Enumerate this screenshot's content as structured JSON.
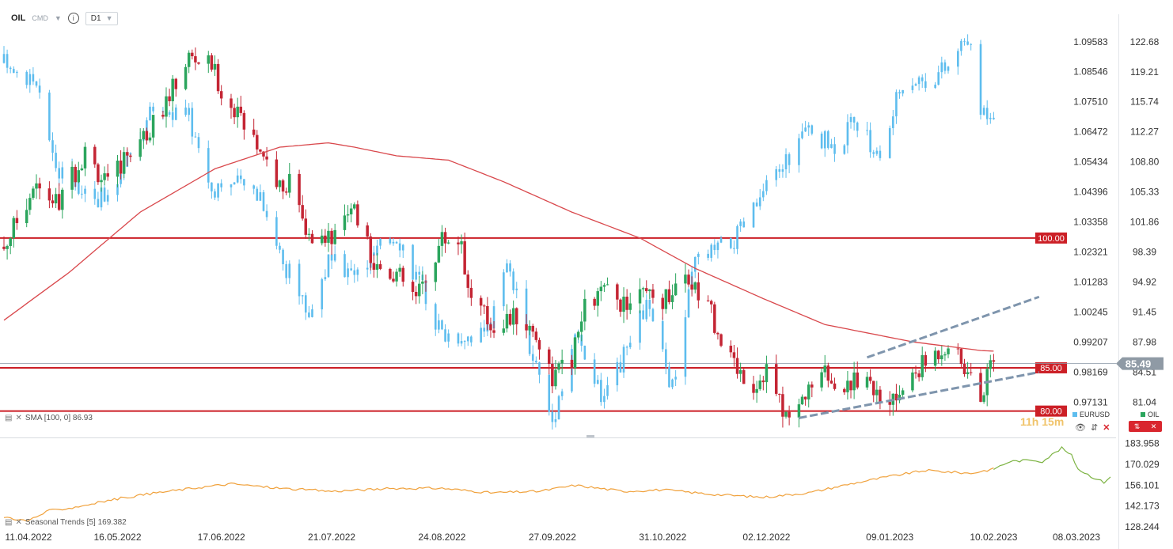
{
  "header": {
    "symbol": "OIL",
    "exchange": "CMD",
    "timeframe": "D1",
    "icons": [
      "chevron-down-icon",
      "info-icon"
    ]
  },
  "colors": {
    "up": "#2ba55d",
    "down": "#c42534",
    "overlay": "#5ebdee",
    "sma": "#d9484c",
    "hline": "#cc1f26",
    "channel": "#7f95ad",
    "seasonal_hist": "#f0a13b",
    "seasonal_proj": "#7cb342"
  },
  "indicators": {
    "sma_label": "SMA [100, 0] 86.93",
    "seasonal_label": "Seasonal Trends [5] 169.382"
  },
  "countdown": "11h 15m",
  "legend": {
    "eurusd": "EURUSD",
    "oil": "OIL"
  },
  "chart_data": {
    "type": "candlestick",
    "symbol": "OIL",
    "timeframe": "D1",
    "overlay_symbol": "EURUSD",
    "x_tick_labels": [
      "11.04.2022",
      "16.05.2022",
      "17.06.2022",
      "21.07.2022",
      "24.08.2022",
      "27.09.2022",
      "31.10.2022",
      "02.12.2022",
      "09.01.2023",
      "10.02.2023",
      "08.03.2023"
    ],
    "x_range": [
      "2022-04-11",
      "2023-03-08"
    ],
    "y_right_ticks": [
      "122.68",
      "119.21",
      "115.74",
      "112.27",
      "108.80",
      "105.33",
      "101.86",
      "98.39",
      "94.92",
      "91.45",
      "87.98",
      "84.51",
      "81.04"
    ],
    "y_range": [
      77.5,
      124.4
    ],
    "y_eurusd_ticks": [
      "1.09583",
      "1.08546",
      "1.07510",
      "1.06472",
      "1.05434",
      "1.04396",
      "1.03358",
      "1.02321",
      "1.01283",
      "1.00245",
      "0.99207",
      "0.98169",
      "0.97131"
    ],
    "last_price": "85.49",
    "horizontal_levels": [
      {
        "label": "100.00",
        "value": 100.0
      },
      {
        "label": "85.00",
        "value": 85.0
      },
      {
        "label": "80.00",
        "value": 80.0
      }
    ],
    "sma": {
      "period": 100,
      "offset": 0,
      "value": 86.93
    },
    "price_anchors": [
      [
        "2022-04-11",
        99
      ],
      [
        "2022-04-20",
        106
      ],
      [
        "2022-04-28",
        104
      ],
      [
        "2022-05-06",
        110
      ],
      [
        "2022-05-13",
        106
      ],
      [
        "2022-05-19",
        110
      ],
      [
        "2022-05-27",
        113
      ],
      [
        "2022-06-07",
        121
      ],
      [
        "2022-06-14",
        120
      ],
      [
        "2022-06-17",
        117
      ],
      [
        "2022-06-22",
        114
      ],
      [
        "2022-06-30",
        110
      ],
      [
        "2022-07-06",
        105
      ],
      [
        "2022-07-08",
        108
      ],
      [
        "2022-07-13",
        100
      ],
      [
        "2022-07-19",
        99
      ],
      [
        "2022-07-27",
        104
      ],
      [
        "2022-08-03",
        97
      ],
      [
        "2022-08-10",
        96
      ],
      [
        "2022-08-16",
        93
      ],
      [
        "2022-08-24",
        100
      ],
      [
        "2022-08-30",
        100
      ],
      [
        "2022-09-01",
        94
      ],
      [
        "2022-09-08",
        90
      ],
      [
        "2022-09-16",
        91
      ],
      [
        "2022-09-22",
        89
      ],
      [
        "2022-09-27",
        84
      ],
      [
        "2022-10-03",
        86
      ],
      [
        "2022-10-07",
        92
      ],
      [
        "2022-10-13",
        94
      ],
      [
        "2022-10-19",
        92
      ],
      [
        "2022-10-25",
        93
      ],
      [
        "2022-10-31",
        93
      ],
      [
        "2022-11-07",
        96
      ],
      [
        "2022-11-14",
        92
      ],
      [
        "2022-11-21",
        86
      ],
      [
        "2022-11-28",
        83
      ],
      [
        "2022-12-02",
        85
      ],
      [
        "2022-12-06",
        81
      ],
      [
        "2022-12-09",
        79
      ],
      [
        "2022-12-14",
        82
      ],
      [
        "2022-12-20",
        84
      ],
      [
        "2022-12-27",
        83
      ],
      [
        "2023-01-02",
        85
      ],
      [
        "2023-01-06",
        80
      ],
      [
        "2023-01-12",
        82
      ],
      [
        "2023-01-18",
        85
      ],
      [
        "2023-01-24",
        87
      ],
      [
        "2023-01-27",
        88
      ],
      [
        "2023-02-01",
        85
      ],
      [
        "2023-02-06",
        82
      ],
      [
        "2023-02-10",
        85.49
      ]
    ],
    "sma_anchors": [
      [
        "2022-04-11",
        90.5
      ],
      [
        "2022-05-01",
        96
      ],
      [
        "2022-05-23",
        103
      ],
      [
        "2022-06-15",
        108
      ],
      [
        "2022-07-05",
        110.5
      ],
      [
        "2022-07-20",
        111
      ],
      [
        "2022-07-28",
        110.5
      ],
      [
        "2022-08-10",
        109.5
      ],
      [
        "2022-08-26",
        109
      ],
      [
        "2022-09-12",
        106.5
      ],
      [
        "2022-10-03",
        103
      ],
      [
        "2022-10-24",
        100
      ],
      [
        "2022-11-10",
        96.5
      ],
      [
        "2022-12-01",
        93
      ],
      [
        "2022-12-20",
        90
      ],
      [
        "2023-01-16",
        88
      ],
      [
        "2023-02-06",
        87
      ],
      [
        "2023-02-10",
        86.93
      ]
    ],
    "eurusd_anchors": [
      [
        "2022-04-11",
        1.0885
      ],
      [
        "2022-04-20",
        1.083
      ],
      [
        "2022-04-28",
        1.052
      ],
      [
        "2022-05-13",
        1.04
      ],
      [
        "2022-05-27",
        1.073
      ],
      [
        "2022-06-07",
        1.07
      ],
      [
        "2022-06-14",
        1.045
      ],
      [
        "2022-06-17",
        1.048
      ],
      [
        "2022-06-29",
        1.044
      ],
      [
        "2022-07-06",
        1.02
      ],
      [
        "2022-07-14",
        1.002
      ],
      [
        "2022-07-20",
        1.02
      ],
      [
        "2022-07-28",
        1.015
      ],
      [
        "2022-08-10",
        1.03
      ],
      [
        "2022-08-18",
        1.01
      ],
      [
        "2022-08-24",
        0.995
      ],
      [
        "2022-09-07",
        0.995
      ],
      [
        "2022-09-13",
        1.018
      ],
      [
        "2022-09-22",
        0.984
      ],
      [
        "2022-09-27",
        0.965
      ],
      [
        "2022-10-04",
        0.995
      ],
      [
        "2022-10-13",
        0.971
      ],
      [
        "2022-10-26",
        1.005
      ],
      [
        "2022-11-03",
        0.976
      ],
      [
        "2022-11-10",
        1.02
      ],
      [
        "2022-11-22",
        1.027
      ],
      [
        "2022-12-05",
        1.05
      ],
      [
        "2022-12-14",
        1.065
      ],
      [
        "2022-12-22",
        1.06
      ],
      [
        "2022-12-30",
        1.068
      ],
      [
        "2023-01-06",
        1.055
      ],
      [
        "2023-01-13",
        1.083
      ],
      [
        "2023-01-20",
        1.083
      ],
      [
        "2023-01-27",
        1.087
      ],
      [
        "2023-02-02",
        1.098
      ],
      [
        "2023-02-06",
        1.072
      ],
      [
        "2023-02-10",
        1.073
      ]
    ],
    "channel": [
      {
        "points": [
          [
            "2022-12-12",
            79.2
          ],
          [
            "2023-02-24",
            84.5
          ]
        ]
      },
      {
        "points": [
          [
            "2023-01-02",
            86.2
          ],
          [
            "2023-02-24",
            93.2
          ]
        ]
      }
    ],
    "seasonal": {
      "ticks": [
        "183.958",
        "170.029",
        "156.101",
        "142.173",
        "128.244"
      ],
      "range": [
        125,
        187
      ],
      "history_anchors": [
        [
          "2022-04-11",
          135
        ],
        [
          "2022-04-18",
          132
        ],
        [
          "2022-04-25",
          139
        ],
        [
          "2022-05-02",
          141
        ],
        [
          "2022-05-16",
          147
        ],
        [
          "2022-05-28",
          151
        ],
        [
          "2022-06-08",
          154
        ],
        [
          "2022-06-20",
          157
        ],
        [
          "2022-07-05",
          154
        ],
        [
          "2022-07-21",
          152
        ],
        [
          "2022-08-10",
          154
        ],
        [
          "2022-08-24",
          154
        ],
        [
          "2022-09-08",
          151
        ],
        [
          "2022-09-23",
          152
        ],
        [
          "2022-10-04",
          156
        ],
        [
          "2022-10-19",
          152
        ],
        [
          "2022-10-31",
          153
        ],
        [
          "2022-11-15",
          150
        ],
        [
          "2022-12-01",
          148
        ],
        [
          "2022-12-15",
          151
        ],
        [
          "2022-12-28",
          157
        ],
        [
          "2023-01-09",
          162
        ],
        [
          "2023-01-20",
          166
        ],
        [
          "2023-02-03",
          164
        ],
        [
          "2023-02-10",
          167
        ]
      ],
      "projection_anchors": [
        [
          "2023-02-10",
          167
        ],
        [
          "2023-02-15",
          172
        ],
        [
          "2023-02-22",
          173
        ],
        [
          "2023-02-25",
          172
        ],
        [
          "2023-03-01",
          178
        ],
        [
          "2023-03-03",
          181
        ],
        [
          "2023-03-06",
          176
        ],
        [
          "2023-03-08",
          167
        ],
        [
          "2023-03-12",
          162
        ],
        [
          "2023-03-16",
          158
        ],
        [
          "2023-03-18",
          162
        ]
      ]
    }
  }
}
